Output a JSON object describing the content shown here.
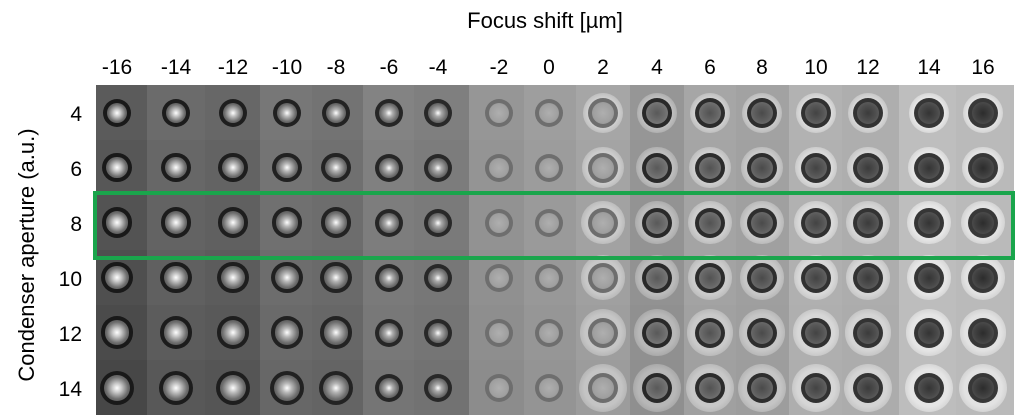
{
  "figure": {
    "title": "Focus shift [µm]",
    "y_axis_label": "Condenser aperture (a.u.)",
    "columns": [
      "-16",
      "-14",
      "-12",
      "-10",
      "-8",
      "-6",
      "-4",
      "-2",
      "0",
      "2",
      "4",
      "6",
      "8",
      "10",
      "12",
      "14",
      "16"
    ],
    "rows": [
      "4",
      "6",
      "8",
      "10",
      "12",
      "14"
    ],
    "highlighted_row": "8",
    "highlight_color": "#1aa54c",
    "image_description_kind": "brightfield micrographs of a single cell"
  }
}
